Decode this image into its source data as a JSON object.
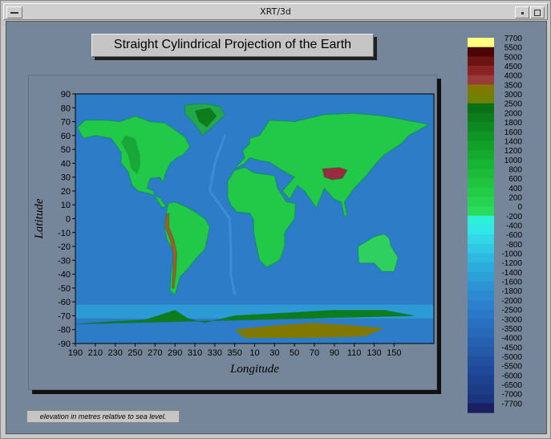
{
  "window": {
    "title": "XRT/3d"
  },
  "footnote": "elevation in metres relative to sea level.",
  "colors": {
    "background": "#75869a",
    "ocean_deep": "#1a3c8c",
    "ocean": "#2c7cc8",
    "shelf": "#30e8e8",
    "lowland": "#22c848",
    "highland": "#0c7c1c",
    "plateau": "#807800",
    "peak": "#5a0808",
    "summit": "#ffff80"
  },
  "chart_data": {
    "type": "heatmap",
    "title": "Straight Cylindrical Projection of the Earth",
    "xlabel": "Longitude",
    "ylabel": "Latitude",
    "x_ticks": [
      "190",
      "210",
      "230",
      "250",
      "270",
      "290",
      "310",
      "330",
      "350",
      "10",
      "30",
      "50",
      "70",
      "90",
      "110",
      "130",
      "150"
    ],
    "y_ticks": [
      "90",
      "80",
      "70",
      "60",
      "50",
      "40",
      "30",
      "20",
      "10",
      "0",
      "-10",
      "-20",
      "-30",
      "-40",
      "-50",
      "-60",
      "-70",
      "-80",
      "-90"
    ],
    "xlim": [
      190,
      170
    ],
    "ylim": [
      -90,
      90
    ],
    "legend": {
      "placement": "right",
      "levels": [
        {
          "label": "7700",
          "color": "#ffff80"
        },
        {
          "label": "5500",
          "color": "#4a0606"
        },
        {
          "label": "5000",
          "color": "#6a1414"
        },
        {
          "label": "4500",
          "color": "#8a2424"
        },
        {
          "label": "4000",
          "color": "#9a3a3a"
        },
        {
          "label": "3500",
          "color": "#807800"
        },
        {
          "label": "3000",
          "color": "#6e8200"
        },
        {
          "label": "2500",
          "color": "#0a7018"
        },
        {
          "label": "2000",
          "color": "#0c7c1c"
        },
        {
          "label": "1800",
          "color": "#0e8820"
        },
        {
          "label": "1600",
          "color": "#109424"
        },
        {
          "label": "1400",
          "color": "#12a028"
        },
        {
          "label": "1200",
          "color": "#16aa2e"
        },
        {
          "label": "1000",
          "color": "#18b434"
        },
        {
          "label": "800",
          "color": "#1cbc3a"
        },
        {
          "label": "600",
          "color": "#20c440"
        },
        {
          "label": "400",
          "color": "#22cc48"
        },
        {
          "label": "200",
          "color": "#26d452"
        },
        {
          "label": "0",
          "color": "#2adc5c"
        },
        {
          "label": "-200",
          "color": "#2cf0d8"
        },
        {
          "label": "-400",
          "color": "#30e8e8"
        },
        {
          "label": "-600",
          "color": "#30d8e8"
        },
        {
          "label": "-800",
          "color": "#30c8e4"
        },
        {
          "label": "-1000",
          "color": "#2cb8e0"
        },
        {
          "label": "-1200",
          "color": "#2cacdc"
        },
        {
          "label": "-1400",
          "color": "#2ca0d8"
        },
        {
          "label": "-1600",
          "color": "#2c94d4"
        },
        {
          "label": "-1800",
          "color": "#2c8ad0"
        },
        {
          "label": "-2000",
          "color": "#2c80cc"
        },
        {
          "label": "-2500",
          "color": "#2c78c8"
        },
        {
          "label": "-3000",
          "color": "#2a70c0"
        },
        {
          "label": "-3500",
          "color": "#2868b8"
        },
        {
          "label": "-4000",
          "color": "#2660b0"
        },
        {
          "label": "-4500",
          "color": "#2458a8"
        },
        {
          "label": "-5000",
          "color": "#2250a0"
        },
        {
          "label": "-5500",
          "color": "#204898"
        },
        {
          "label": "-6000",
          "color": "#1e4290"
        },
        {
          "label": "-6500",
          "color": "#1c3c88"
        },
        {
          "label": "-7000",
          "color": "#1a3480"
        },
        {
          "label": "-7700",
          "color": "#1a2060"
        }
      ]
    },
    "regions": [
      {
        "name": "north-america",
        "elevation": 400
      },
      {
        "name": "greenland",
        "elevation": 2500
      },
      {
        "name": "south-america",
        "elevation": 400
      },
      {
        "name": "andes",
        "elevation": 4000
      },
      {
        "name": "africa",
        "elevation": 800
      },
      {
        "name": "eurasia",
        "elevation": 400
      },
      {
        "name": "tibet",
        "elevation": 5000
      },
      {
        "name": "australia",
        "elevation": 200
      },
      {
        "name": "antarctica",
        "elevation": 3000
      }
    ]
  }
}
